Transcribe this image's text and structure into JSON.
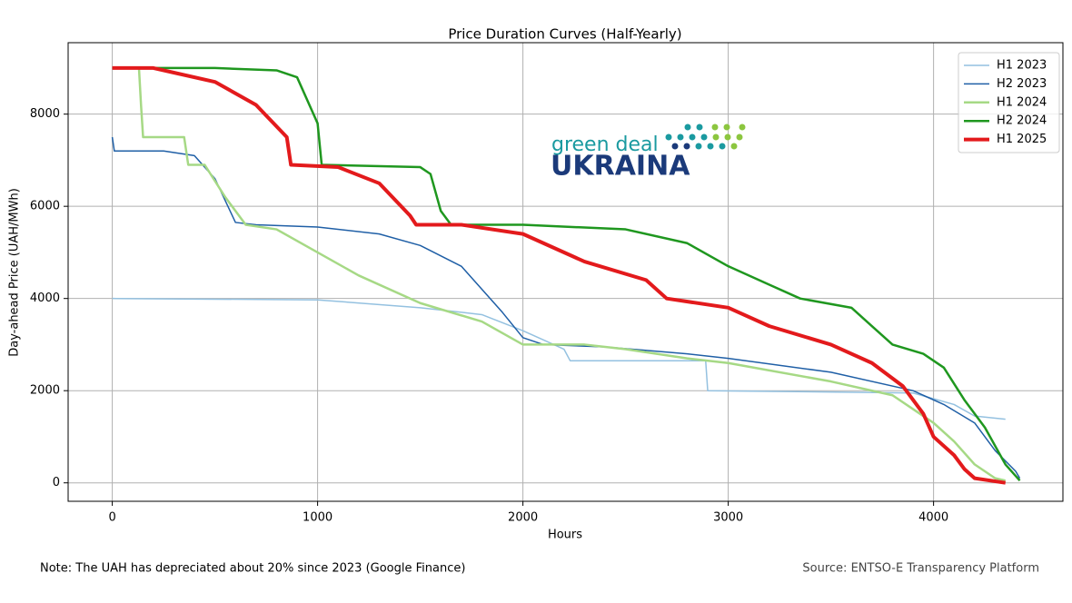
{
  "chart_data": {
    "type": "line",
    "title": "Price Duration Curves (Half-Yearly)",
    "xlabel": "Hours",
    "ylabel": "Day-ahead Price (UAH/MWh)",
    "xlim": [
      -215,
      4630
    ],
    "ylim": [
      -400,
      9550
    ],
    "xticks": [
      0,
      1000,
      2000,
      3000,
      4000
    ],
    "yticks": [
      0,
      2000,
      4000,
      6000,
      8000
    ],
    "grid": true,
    "legend": "upper right",
    "note": "Note: The UAH has depreciated about 20% since 2023 (Google Finance)",
    "source": "Source: ENTSO-E Transparency Platform",
    "logo": {
      "top": "green deal",
      "bottom": "UKRAINA"
    },
    "series": [
      {
        "name": "H1 2023",
        "color": "#94c1e0",
        "linewidth": 1.5,
        "x": [
          0,
          1000,
          1500,
          1800,
          2000,
          2100,
          2200,
          2230,
          2890,
          2900,
          3900,
          4100,
          4200,
          4350
        ],
        "values": [
          4000,
          3970,
          3800,
          3650,
          3300,
          3100,
          2900,
          2650,
          2650,
          2000,
          1950,
          1700,
          1450,
          1380
        ]
      },
      {
        "name": "H2 2023",
        "color": "#1f5fa6",
        "linewidth": 1.5,
        "x": [
          0,
          10,
          250,
          400,
          500,
          600,
          700,
          1000,
          1300,
          1500,
          1700,
          1900,
          2000,
          2100,
          2400,
          2800,
          3000,
          3500,
          3900,
          4050,
          4200,
          4300,
          4400,
          4420
        ],
        "values": [
          7500,
          7200,
          7200,
          7100,
          6600,
          5650,
          5600,
          5550,
          5400,
          5150,
          4700,
          3700,
          3150,
          3000,
          2950,
          2800,
          2700,
          2400,
          2000,
          1700,
          1300,
          700,
          250,
          100
        ]
      },
      {
        "name": "H1 2024",
        "color": "#a6d985",
        "linewidth": 2.5,
        "x": [
          0,
          130,
          140,
          150,
          350,
          370,
          450,
          550,
          650,
          800,
          1000,
          1200,
          1500,
          1800,
          2000,
          2300,
          2500,
          2800,
          3000,
          3500,
          3800,
          4000,
          4100,
          4200,
          4300,
          4350
        ],
        "values": [
          9000,
          9000,
          8200,
          7500,
          7500,
          6900,
          6900,
          6200,
          5600,
          5500,
          5000,
          4500,
          3900,
          3500,
          3000,
          3000,
          2900,
          2700,
          2600,
          2200,
          1900,
          1300,
          900,
          400,
          100,
          50
        ]
      },
      {
        "name": "H2 2024",
        "color": "#1f971f",
        "linewidth": 2.5,
        "x": [
          0,
          500,
          800,
          900,
          1000,
          1020,
          1500,
          1550,
          1600,
          1650,
          2000,
          2500,
          2800,
          3000,
          3200,
          3350,
          3600,
          3700,
          3800,
          3950,
          4050,
          4150,
          4250,
          4350,
          4420
        ],
        "values": [
          9000,
          9000,
          8950,
          8800,
          7800,
          6900,
          6850,
          6700,
          5900,
          5600,
          5600,
          5500,
          5200,
          4700,
          4300,
          4000,
          3800,
          3400,
          3000,
          2800,
          2500,
          1800,
          1200,
          400,
          50
        ]
      },
      {
        "name": "H1 2025",
        "color": "#e31a1c",
        "linewidth": 4,
        "x": [
          0,
          200,
          300,
          500,
          700,
          850,
          870,
          1100,
          1300,
          1450,
          1480,
          1700,
          2000,
          2300,
          2600,
          2700,
          3000,
          3200,
          3500,
          3700,
          3850,
          3950,
          4000,
          4100,
          4150,
          4200,
          4350
        ],
        "values": [
          9000,
          9000,
          8900,
          8700,
          8200,
          7500,
          6900,
          6850,
          6500,
          5800,
          5600,
          5600,
          5400,
          4800,
          4400,
          4000,
          3800,
          3400,
          3000,
          2600,
          2100,
          1500,
          1000,
          600,
          300,
          100,
          0
        ]
      }
    ]
  }
}
